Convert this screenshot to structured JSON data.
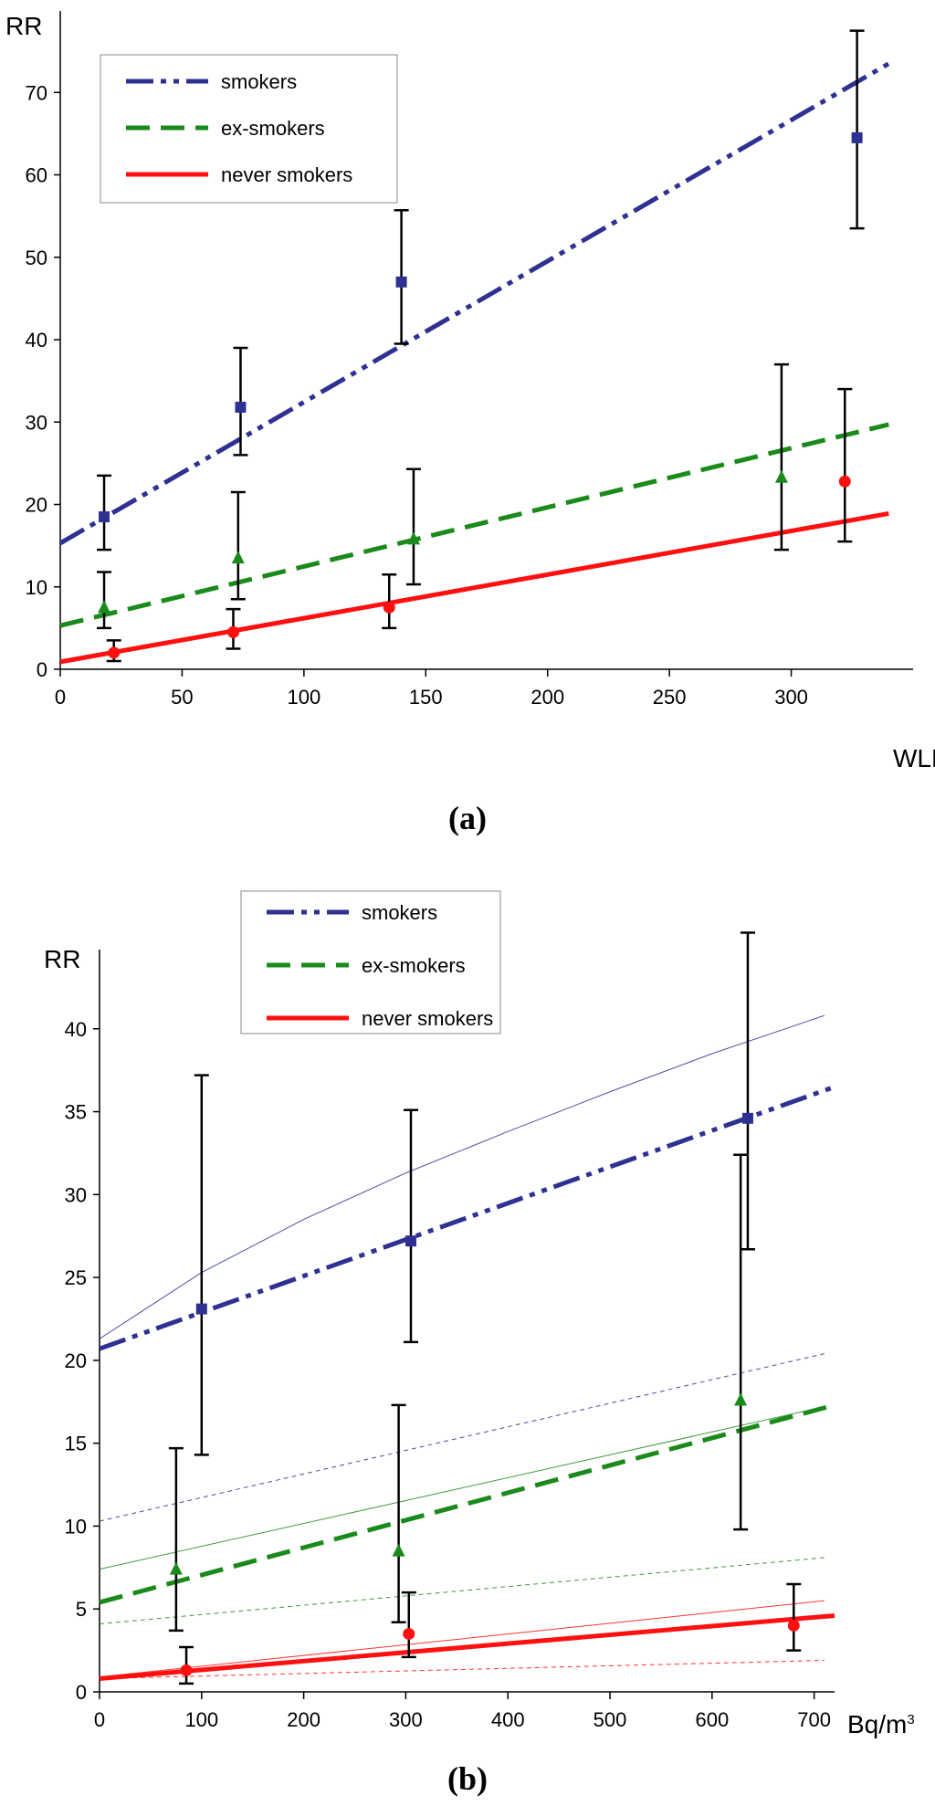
{
  "colors": {
    "smokers": "#2e3192",
    "ex_smokers": "#1a8a1a",
    "never_smokers": "#ff1010",
    "error": "#000000"
  },
  "chart_data": [
    {
      "type": "line",
      "panel_label": "(a)",
      "ylabel": "RR",
      "xlabel": "WLM",
      "xlim": [
        0,
        350
      ],
      "ylim": [
        0,
        80
      ],
      "xticks": [
        "0",
        "50",
        "100",
        "150",
        "200",
        "250",
        "300"
      ],
      "yticks": [
        "0",
        "10",
        "20",
        "30",
        "40",
        "50",
        "60",
        "70"
      ],
      "legend": [
        "smokers",
        "ex-smokers",
        "never smokers"
      ],
      "series": [
        {
          "name": "smokers",
          "fit_x": [
            0,
            340
          ],
          "fit_y": [
            15.3,
            73.5
          ],
          "points": [
            {
              "x": 18,
              "y": 18.5,
              "lo": 14.5,
              "hi": 23.5
            },
            {
              "x": 74,
              "y": 31.8,
              "lo": 26,
              "hi": 39
            },
            {
              "x": 140,
              "y": 47,
              "lo": 39.5,
              "hi": 55.7
            },
            {
              "x": 327,
              "y": 64.5,
              "lo": 53.5,
              "hi": 77.5
            }
          ]
        },
        {
          "name": "ex-smokers",
          "fit_x": [
            0,
            340
          ],
          "fit_y": [
            5.3,
            29.7
          ],
          "points": [
            {
              "x": 18,
              "y": 7.5,
              "lo": 5,
              "hi": 11.8
            },
            {
              "x": 73,
              "y": 13.5,
              "lo": 8.5,
              "hi": 21.5
            },
            {
              "x": 145,
              "y": 15.8,
              "lo": 10.3,
              "hi": 24.3
            },
            {
              "x": 296,
              "y": 23.3,
              "lo": 14.5,
              "hi": 37
            }
          ]
        },
        {
          "name": "never smokers",
          "fit_x": [
            0,
            340
          ],
          "fit_y": [
            0.9,
            18.9
          ],
          "points": [
            {
              "x": 22,
              "y": 2.0,
              "lo": 1.0,
              "hi": 3.5
            },
            {
              "x": 71,
              "y": 4.5,
              "lo": 2.5,
              "hi": 7.3
            },
            {
              "x": 135,
              "y": 7.5,
              "lo": 5.0,
              "hi": 11.5
            },
            {
              "x": 322,
              "y": 22.8,
              "lo": 15.5,
              "hi": 34
            }
          ]
        }
      ]
    },
    {
      "type": "line",
      "panel_label": "(b)",
      "ylabel": "RR",
      "xlabel": "Bq/m",
      "xlabel_sup": "3",
      "xlim": [
        0,
        720
      ],
      "ylim": [
        0,
        45
      ],
      "xticks": [
        "0",
        "100",
        "200",
        "300",
        "400",
        "500",
        "600",
        "700"
      ],
      "yticks": [
        "0",
        "5",
        "10",
        "15",
        "20",
        "25",
        "30",
        "35",
        "40"
      ],
      "legend": [
        "smokers",
        "ex-smokers",
        "never smokers"
      ],
      "series": [
        {
          "name": "smokers",
          "fit_x": [
            0,
            720
          ],
          "fit_y": [
            20.7,
            36.5
          ],
          "upper_x": [
            0,
            100,
            200,
            300,
            400,
            500,
            600,
            710
          ],
          "upper_y": [
            21.3,
            25.3,
            28.5,
            31.3,
            33.8,
            36.2,
            38.5,
            40.8
          ],
          "lower_x": [
            0,
            710
          ],
          "lower_y": [
            10.3,
            20.4
          ],
          "points": [
            {
              "x": 100,
              "y": 23.1,
              "lo": 14.3,
              "hi": 37.2
            },
            {
              "x": 305,
              "y": 27.2,
              "lo": 21.1,
              "hi": 35.1
            },
            {
              "x": 635,
              "y": 34.6,
              "lo": 26.7,
              "hi": 45.8
            }
          ]
        },
        {
          "name": "ex-smokers",
          "fit_x": [
            0,
            720
          ],
          "fit_y": [
            5.4,
            17.3
          ],
          "upper_x": [
            0,
            710
          ],
          "upper_y": [
            7.4,
            17.2
          ],
          "lower_x": [
            0,
            710
          ],
          "lower_y": [
            4.1,
            8.1
          ],
          "points": [
            {
              "x": 75,
              "y": 7.4,
              "lo": 3.7,
              "hi": 14.7
            },
            {
              "x": 293,
              "y": 8.5,
              "lo": 4.2,
              "hi": 17.3
            },
            {
              "x": 628,
              "y": 17.6,
              "lo": 9.8,
              "hi": 32.4
            }
          ]
        },
        {
          "name": "never smokers",
          "fit_x": [
            0,
            720
          ],
          "fit_y": [
            0.8,
            4.6
          ],
          "upper_x": [
            0,
            710
          ],
          "upper_y": [
            0.9,
            5.5
          ],
          "lower_x": [
            0,
            710
          ],
          "lower_y": [
            0.8,
            1.9
          ],
          "points": [
            {
              "x": 85,
              "y": 1.3,
              "lo": 0.5,
              "hi": 2.7
            },
            {
              "x": 303,
              "y": 3.5,
              "lo": 2.1,
              "hi": 6.0
            },
            {
              "x": 680,
              "y": 4.0,
              "lo": 2.5,
              "hi": 6.5
            }
          ]
        }
      ]
    }
  ]
}
